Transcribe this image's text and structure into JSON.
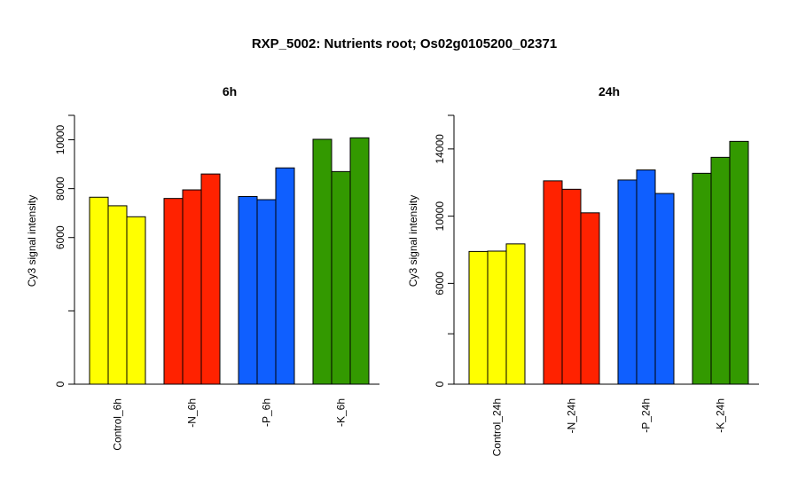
{
  "title": "RXP_5002: Nutrients root; Os02g0105200_02371",
  "chart_data": [
    {
      "type": "bar",
      "title": "6h",
      "ylabel": "Cy3 signal intensity",
      "ylim": [
        0,
        11000
      ],
      "yticks": [
        0,
        6000,
        8000,
        10000
      ],
      "categories": [
        "Control_6h",
        "-N_6h",
        "-P_6h",
        "-K_6h"
      ],
      "colors": [
        "#ffff00",
        "#ff2200",
        "#0f5fff",
        "#339900"
      ],
      "values": [
        [
          7650,
          7300,
          6850
        ],
        [
          7600,
          7950,
          8600
        ],
        [
          7680,
          7550,
          8850
        ],
        [
          10020,
          8700,
          10080
        ]
      ]
    },
    {
      "type": "bar",
      "title": "24h",
      "ylabel": "Cy3 signal intensity",
      "ylim": [
        0,
        16000
      ],
      "yticks": [
        0,
        6000,
        10000,
        14000
      ],
      "categories": [
        "Control_24h",
        "-N_24h",
        "-P_24h",
        "-K_24h"
      ],
      "colors": [
        "#ffff00",
        "#ff2200",
        "#0f5fff",
        "#339900"
      ],
      "values": [
        [
          7900,
          7920,
          8350
        ],
        [
          12100,
          11600,
          10200
        ],
        [
          12150,
          12750,
          11350
        ],
        [
          12550,
          13500,
          14450
        ]
      ]
    }
  ]
}
